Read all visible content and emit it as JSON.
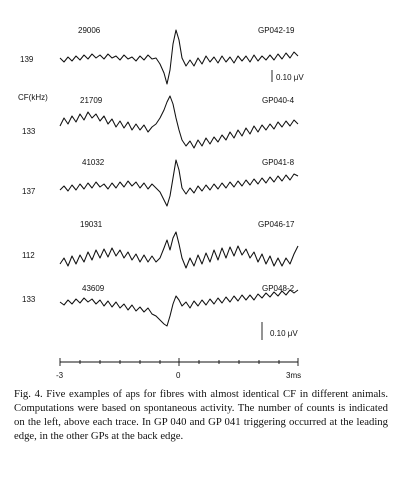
{
  "figure": {
    "traces": [
      {
        "count": "29006",
        "id": "GP042-19",
        "cf": "139"
      },
      {
        "count": "21709",
        "id": "GP040-4",
        "cf": "133"
      },
      {
        "count": "41032",
        "id": "GP041-8",
        "cf": "137"
      },
      {
        "count": "19031",
        "id": "GP046-17",
        "cf": "112"
      },
      {
        "count": "43609",
        "id": "GP048-2",
        "cf": "133"
      }
    ],
    "cf_header": "CF(kHz)",
    "scale_bars": [
      "0.10 μV",
      "0.10 μV"
    ],
    "time_axis": {
      "ticks": [
        "-3",
        "0",
        "3ms"
      ]
    }
  },
  "caption": {
    "text": "Fig. 4. Five examples of aps for fibres with almost identical CF in different animals. Computations were based on spontaneous activity. The number of counts is indicated on the left, above each trace. In GP 040 and GP 041 triggering occurred at the leading edge, in the other GPs at the back edge."
  }
}
